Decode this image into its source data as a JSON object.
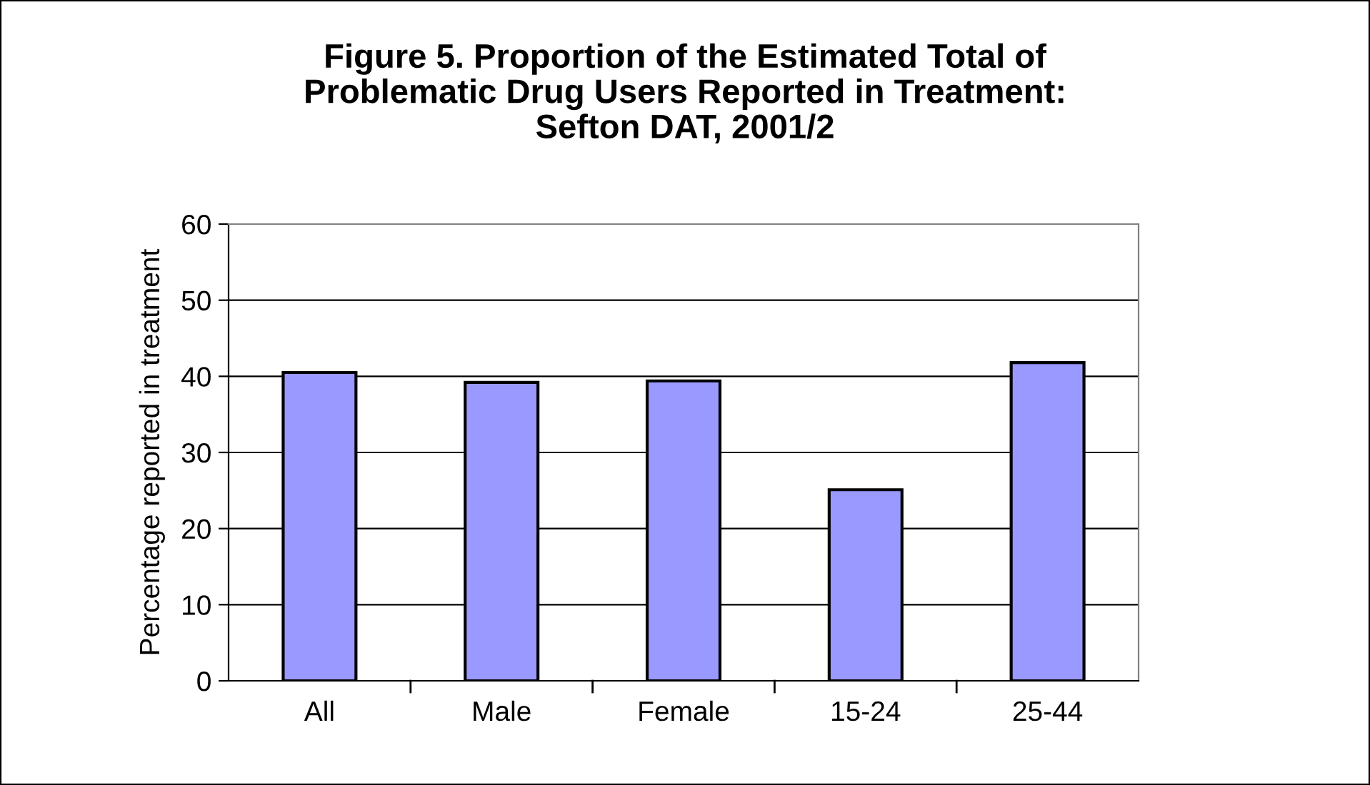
{
  "chart_data": {
    "type": "bar",
    "title": "Figure 5. Proportion of the Estimated Total of\nProblematic Drug Users Reported in Treatment:\nSefton DAT, 2001/2",
    "ylabel": "Percentage reported in treatment",
    "categories": [
      "All",
      "Male",
      "Female",
      "15-24",
      "25-44"
    ],
    "values": [
      40.5,
      39.2,
      39.4,
      25.1,
      41.8
    ],
    "color": "#9999ff",
    "ylim": [
      0,
      60
    ],
    "yticks": [
      0,
      10,
      20,
      30,
      40,
      50,
      60
    ],
    "grid": "y",
    "legend": false
  }
}
